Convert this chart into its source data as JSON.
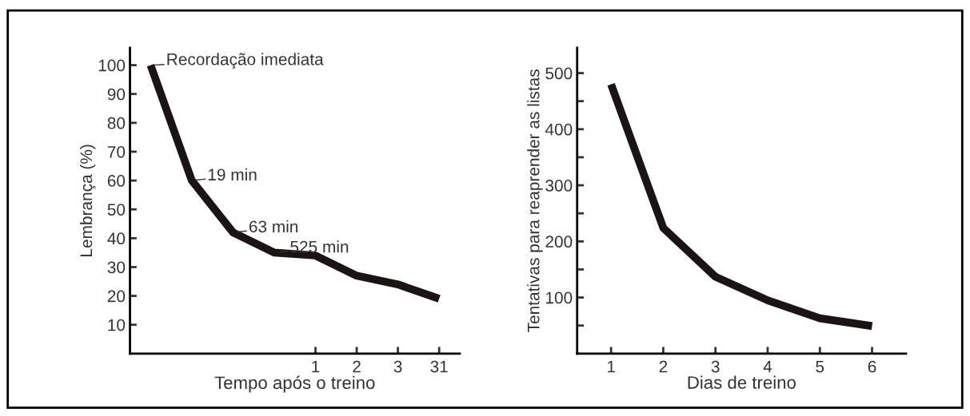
{
  "chart_data": [
    {
      "type": "line",
      "xlabel": "Tempo após o treino",
      "ylabel": "Lembrança (%)",
      "categories": [
        null,
        null,
        null,
        null,
        "1",
        "2",
        "3",
        "31"
      ],
      "series": [
        {
          "color": "#1a1414",
          "values": [
            100,
            60,
            42,
            35,
            34,
            27,
            24,
            19
          ]
        }
      ],
      "ylim": [
        0,
        106
      ],
      "yticks": [
        10,
        20,
        30,
        40,
        50,
        60,
        70,
        80,
        90,
        100
      ],
      "grid": false,
      "marker": "none",
      "line_style": "solid",
      "annotations": [
        "Recordação imediata",
        "19 min",
        "63 min",
        "525 min"
      ]
    },
    {
      "type": "line",
      "xlabel": "Dias de treino",
      "ylabel": "Tentativas para reaprender as listas",
      "series": [
        {
          "color": "#1a1414",
          "x": [
            1,
            2,
            3,
            4,
            5,
            6
          ],
          "values": [
            480,
            224,
            137,
            95,
            63,
            49
          ]
        }
      ],
      "xlim": [
        0.35,
        6.65
      ],
      "xticks": [
        1,
        2,
        3,
        4,
        5,
        6
      ],
      "ylim": [
        0,
        545
      ],
      "yticks": [
        {
          "value": 50,
          "label": null
        },
        100,
        {
          "value": 150,
          "label": null
        },
        200,
        {
          "value": 250,
          "label": null
        },
        300,
        {
          "value": 350,
          "label": null
        },
        400,
        {
          "value": 450,
          "label": null
        },
        500
      ],
      "grid": false,
      "marker": "none",
      "line_style": "solid"
    }
  ]
}
